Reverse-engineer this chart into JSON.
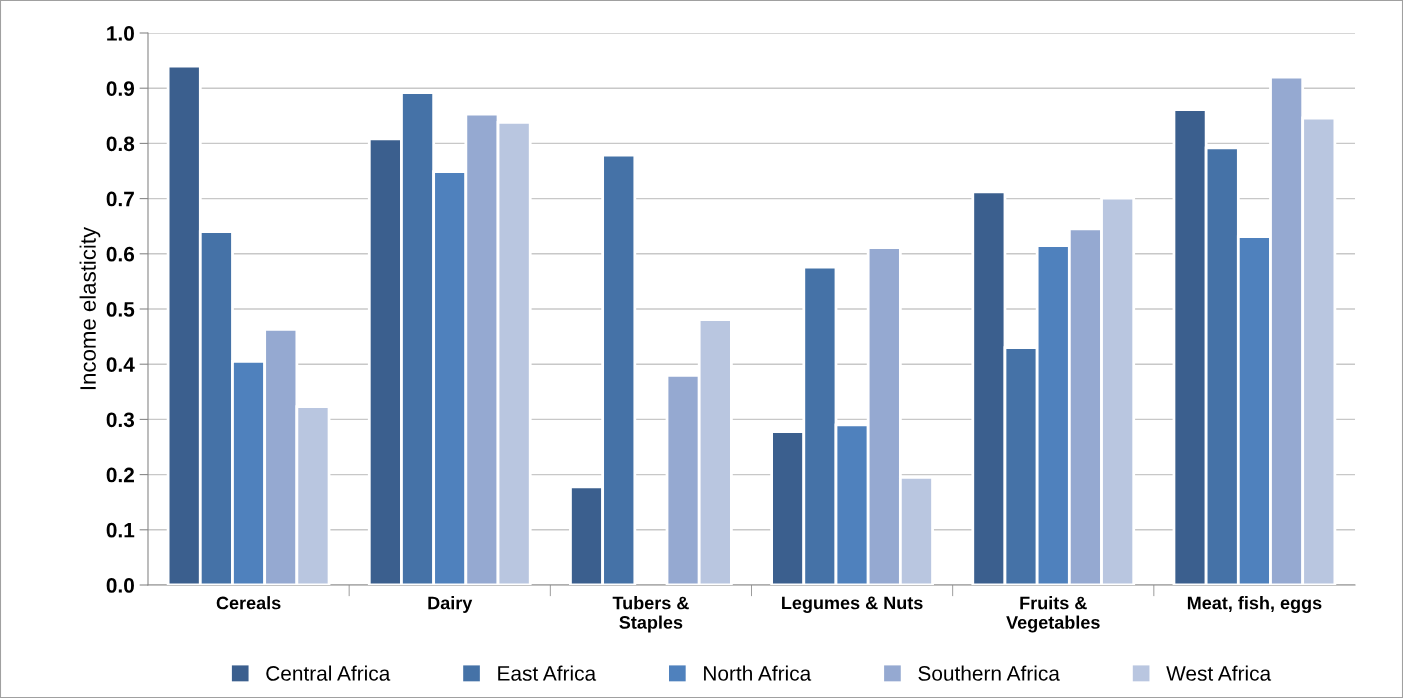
{
  "chart_data": {
    "type": "bar",
    "ylabel": "Income elasticity",
    "categories": [
      "Cereals",
      "Dairy",
      "Tubers &\nStaples",
      "Legumes & Nuts",
      "Fruits &\nVegetables",
      "Meat, fish, eggs"
    ],
    "series": [
      {
        "name": "Central Africa",
        "color": "#3b5f8e",
        "values": [
          0.94,
          0.808,
          0.178,
          0.278,
          0.712,
          0.861
        ]
      },
      {
        "name": "East Africa",
        "color": "#4572a7",
        "values": [
          0.64,
          0.892,
          0.779,
          0.576,
          0.43,
          0.792
        ]
      },
      {
        "name": "North Africa",
        "color": "#4f81bd",
        "values": [
          0.405,
          0.749,
          null,
          0.29,
          0.615,
          0.631
        ]
      },
      {
        "name": "Southern Africa",
        "color": "#95a9d1",
        "values": [
          0.463,
          0.853,
          0.38,
          0.611,
          0.645,
          0.92
        ]
      },
      {
        "name": "West Africa",
        "color": "#b9c6e0",
        "values": [
          0.323,
          0.838,
          0.481,
          0.195,
          0.701,
          0.846
        ]
      }
    ],
    "ylim": [
      0,
      1.0
    ],
    "yticks": [
      {
        "value": 0,
        "label": "0.0"
      },
      0.1,
      0.2,
      0.3,
      0.4,
      0.5,
      0.6,
      0.7,
      0.8,
      0.9,
      {
        "value": 1,
        "label": "1.0"
      }
    ],
    "grid": "y",
    "legend": "bottom"
  }
}
